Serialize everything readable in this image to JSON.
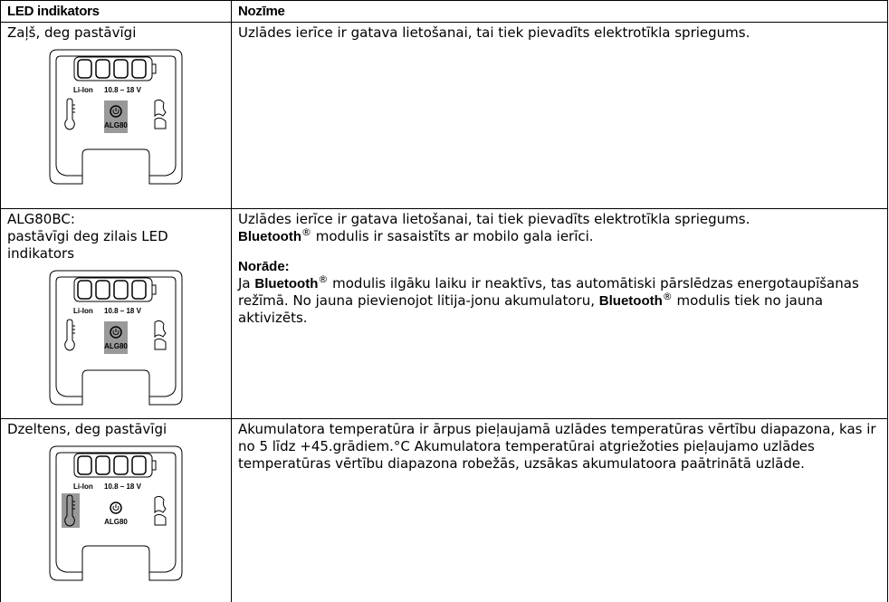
{
  "table": {
    "header": [
      "LED indikators",
      "Nozīme"
    ],
    "rows": [
      {
        "indicator": [
          "Zaļš, deg pastāvīgi"
        ],
        "device": {
          "battery": "Li-Ion",
          "voltage": "10.8 – 18 V",
          "model": "ALG80"
        },
        "meaning": [
          {
            "runs": [
              {
                "text": "Uzlādes ierīce ir gatava lietošanai, tai tiek pievadīts elektrotīkla spriegums."
              }
            ]
          }
        ]
      },
      {
        "indicator": [
          "ALG80BC:",
          "pastāvīgi deg zilais LED indikators"
        ],
        "device": {
          "battery": "Li-Ion",
          "voltage": "10.8 – 18 V",
          "model": "ALG80"
        },
        "meaning": [
          {
            "runs": [
              {
                "text": "Uzlādes ierīce ir gatava lietošanai, tai tiek pievadīts elektrotīkla spriegums."
              }
            ]
          },
          {
            "runs": [
              {
                "text": "Bluetooth",
                "bold": true
              },
              {
                "text": "®",
                "sup": true
              },
              {
                "text": " modulis ir sasaistīts ar mobilo gala ierīci."
              }
            ]
          },
          {
            "heading": true,
            "runs": [
              {
                "text": "Norāde:",
                "bold": true
              }
            ]
          },
          {
            "runs": [
              {
                "text": "Ja "
              },
              {
                "text": "Bluetooth",
                "bold": true
              },
              {
                "text": "®",
                "sup": true
              },
              {
                "text": " modulis ilgāku laiku ir neaktīvs, tas automātiski pārslēdzas energotaupīšanas režīmā. No jauna pievienojot litija-jonu akumulatoru, "
              },
              {
                "text": "Bluetooth",
                "bold": true
              },
              {
                "text": "®",
                "sup": true
              },
              {
                "text": " modulis tiek no jauna aktivizēts."
              }
            ]
          }
        ]
      },
      {
        "indicator": [
          "Dzeltens, deg pastāvīgi"
        ],
        "device": {
          "battery": "Li-Ion",
          "voltage": "10.8 – 18 V",
          "model": "ALG80"
        },
        "meaning": [
          {
            "runs": [
              {
                "text": "Akumulatora temperatūra ir ārpus pieļaujamā uzlādes temperatūras vērtību diapazona, kas ir no 5 līdz +45.grādiem.°C Akumulatora temperatūrai atgriežoties pieļaujamo uzlādes temperatūras vērtību diapazona robežās, uzsākas akumulatoora paātrinātā uzlāde."
              }
            ]
          }
        ]
      }
    ]
  }
}
